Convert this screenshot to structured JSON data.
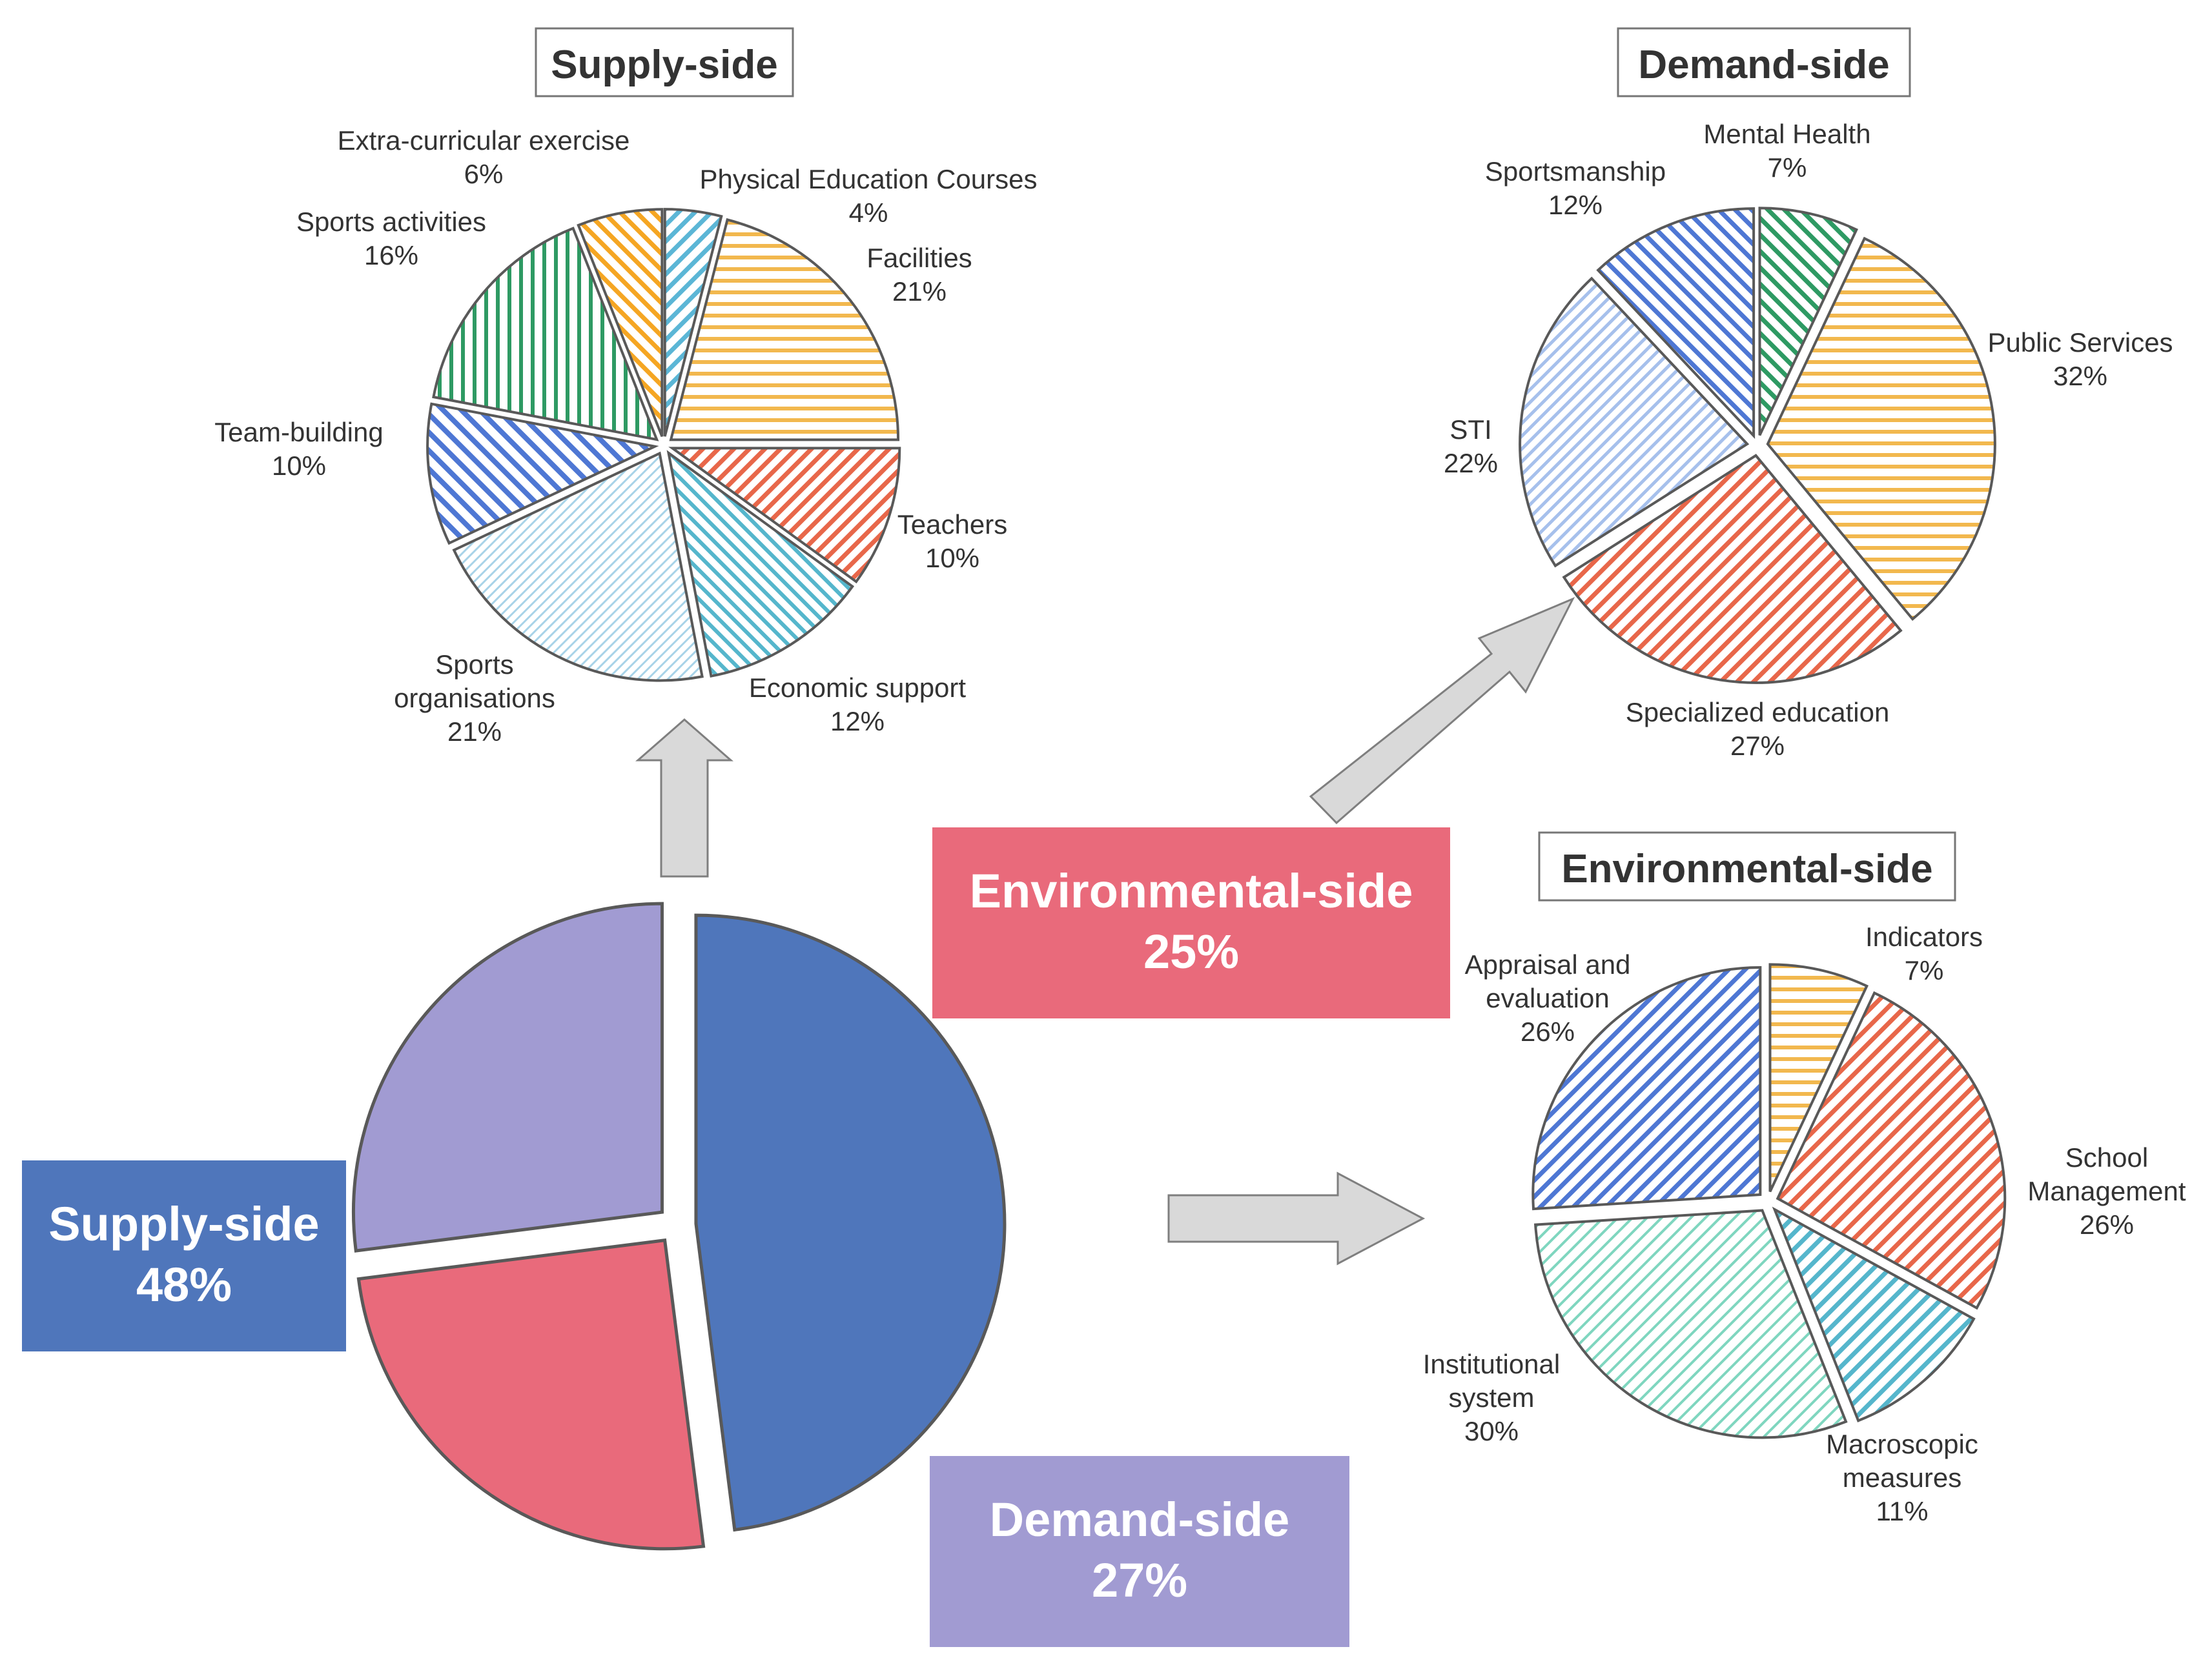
{
  "chart_data": [
    {
      "id": "overall",
      "type": "pie",
      "title": "",
      "categories": [
        "Supply-side",
        "Environmental-side",
        "Demand-side"
      ],
      "values": [
        48,
        25,
        27
      ],
      "labels": [
        "48%",
        "25%",
        "27%"
      ],
      "colors": [
        "#4f76bb",
        "#e96a7b",
        "#a19bd2"
      ]
    },
    {
      "id": "supply",
      "type": "pie",
      "title": "Supply-side",
      "categories": [
        "Physical Education Courses",
        "Facilities",
        "Teachers",
        "Economic support",
        "Sports organisations",
        "Team-building",
        "Sports activities",
        "Extra-curricular exercise"
      ],
      "label_lines": [
        [
          "Physical Education Courses"
        ],
        [
          "Facilities"
        ],
        [
          "Teachers"
        ],
        [
          "Economic support"
        ],
        [
          "Sports",
          "organisations"
        ],
        [
          "Team-building"
        ],
        [
          "Sports activities"
        ],
        [
          "Extra-curricular exercise"
        ]
      ],
      "values": [
        4,
        21,
        10,
        12,
        21,
        10,
        16,
        6
      ],
      "labels": [
        "4%",
        "21%",
        "10%",
        "12%",
        "21%",
        "10%",
        "16%",
        "6%"
      ],
      "colors": [
        "#5bb6d6",
        "#f2b84e",
        "#e8674a",
        "#55b6cc",
        "#a8d3e8",
        "#4e77d4",
        "#2e9a63",
        "#f5a623"
      ]
    },
    {
      "id": "demand",
      "type": "pie",
      "title": "Demand-side",
      "categories": [
        "Mental Health",
        "Public Services",
        "Specialized education",
        "STI",
        "Sportsmanship"
      ],
      "label_lines": [
        [
          "Mental Health"
        ],
        [
          "Public Services"
        ],
        [
          "Specialized education"
        ],
        [
          "STI"
        ],
        [
          "Sportsmanship"
        ]
      ],
      "values": [
        7,
        32,
        27,
        22,
        12
      ],
      "labels": [
        "7%",
        "32%",
        "27%",
        "22%",
        "12%"
      ],
      "colors": [
        "#2e9a63",
        "#f2b84e",
        "#e8674a",
        "#a6c0ec",
        "#4e77d4"
      ]
    },
    {
      "id": "environmental",
      "type": "pie",
      "title": "Environmental-side",
      "categories": [
        "Indicators",
        "School Management",
        "Macroscopic measures",
        "Institutional system",
        "Appraisal and evaluation"
      ],
      "label_lines": [
        [
          "Indicators"
        ],
        [
          "School",
          "Management"
        ],
        [
          "Macroscopic",
          "measures"
        ],
        [
          "Institutional",
          "system"
        ],
        [
          "Appraisal and",
          "evaluation"
        ]
      ],
      "values": [
        7,
        26,
        11,
        30,
        26
      ],
      "labels": [
        "7%",
        "26%",
        "11%",
        "30%",
        "26%"
      ],
      "colors": [
        "#f2b84e",
        "#e8674a",
        "#55b6cc",
        "#7fd6bf",
        "#4e77d4"
      ]
    }
  ]
}
